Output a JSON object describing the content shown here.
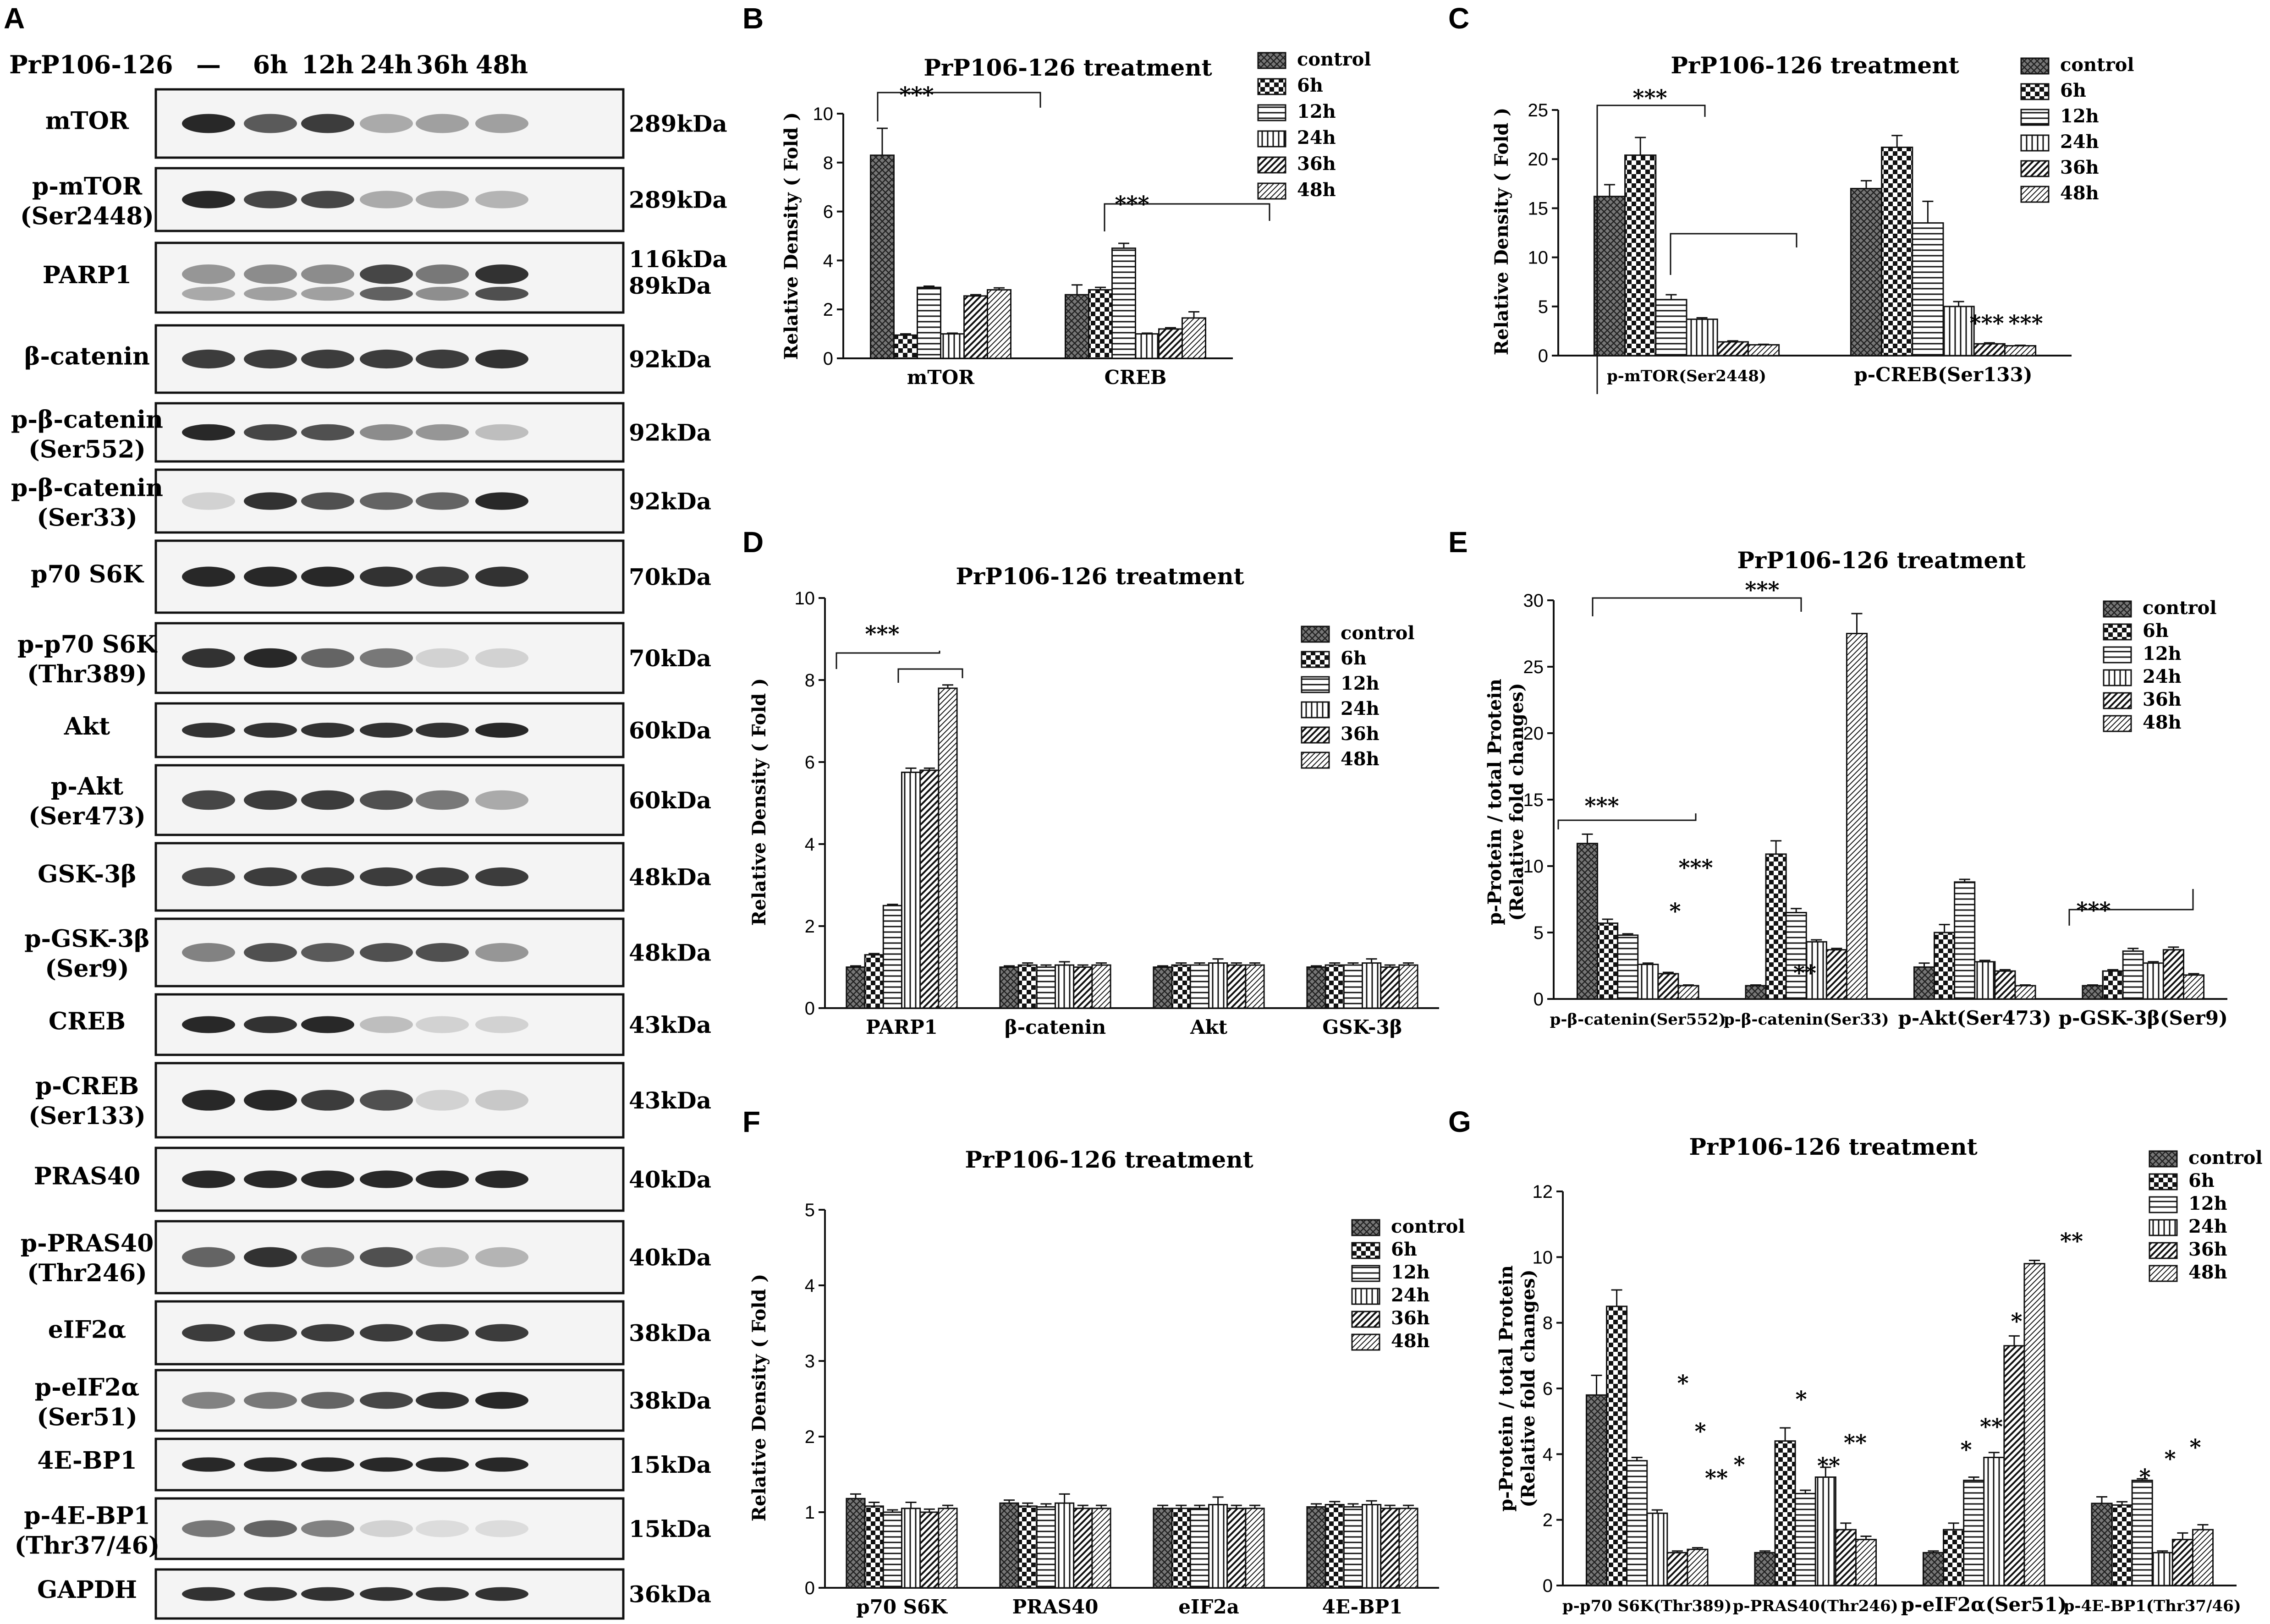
{
  "figure_title": "PrP106-126 treatment",
  "panels": {
    "a": {
      "letter": "A",
      "treatment_label": "PrP106-126",
      "lanes": [
        "—",
        "6h",
        "12h",
        "24h",
        "36h",
        "48h"
      ],
      "blots": [
        {
          "name": "mTOR",
          "site": "",
          "kda": [
            "289kDa"
          ]
        },
        {
          "name": "p-mTOR",
          "site": "(Ser2448)",
          "kda": [
            "289kDa"
          ]
        },
        {
          "name": "PARP1",
          "site": "",
          "kda": [
            "116kDa",
            "89kDa"
          ]
        },
        {
          "name": "β-catenin",
          "site": "",
          "kda": [
            "92kDa"
          ]
        },
        {
          "name": "p-β-catenin",
          "site": "(Ser552)",
          "kda": [
            "92kDa"
          ]
        },
        {
          "name": "p-β-catenin",
          "site": "(Ser33)",
          "kda": [
            "92kDa"
          ]
        },
        {
          "name": "p70 S6K",
          "site": "",
          "kda": [
            "70kDa"
          ]
        },
        {
          "name": "p-p70 S6K",
          "site": "(Thr389)",
          "kda": [
            "70kDa"
          ]
        },
        {
          "name": "Akt",
          "site": "",
          "kda": [
            "60kDa"
          ]
        },
        {
          "name": "p-Akt",
          "site": "(Ser473)",
          "kda": [
            "60kDa"
          ]
        },
        {
          "name": "GSK-3β",
          "site": "",
          "kda": [
            "48kDa"
          ]
        },
        {
          "name": "p-GSK-3β",
          "site": "(Ser9)",
          "kda": [
            "48kDa"
          ]
        },
        {
          "name": "CREB",
          "site": "",
          "kda": [
            "43kDa"
          ]
        },
        {
          "name": "p-CREB",
          "site": "(Ser133)",
          "kda": [
            "43kDa"
          ]
        },
        {
          "name": "PRAS40",
          "site": "",
          "kda": [
            "40kDa"
          ]
        },
        {
          "name": "p-PRAS40",
          "site": "(Thr246)",
          "kda": [
            "40kDa"
          ]
        },
        {
          "name": "eIF2α",
          "site": "",
          "kda": [
            "38kDa"
          ]
        },
        {
          "name": "p-eIF2α",
          "site": "(Ser51)",
          "kda": [
            "38kDa"
          ]
        },
        {
          "name": "4E-BP1",
          "site": "",
          "kda": [
            "15kDa"
          ]
        },
        {
          "name": "p-4E-BP1",
          "site": "(Thr37/46)",
          "kda": [
            "15kDa"
          ]
        },
        {
          "name": "GAPDH",
          "site": "",
          "kda": [
            "36kDa"
          ]
        }
      ]
    }
  },
  "chart_data": [
    {
      "panel": "B",
      "type": "bar",
      "title": "PrP106-126 treatment",
      "ylabel": "Relative Density ( Fold )",
      "xlabel": "",
      "ylim": [
        0,
        10
      ],
      "yticks": [
        0,
        2,
        4,
        6,
        8,
        10
      ],
      "categories": [
        "mTOR",
        "CREB"
      ],
      "series": [
        {
          "name": "control",
          "values": [
            8.3,
            2.6
          ],
          "err": [
            1.1,
            0.4
          ]
        },
        {
          "name": "6h",
          "values": [
            0.95,
            2.8
          ],
          "err": [
            0.05,
            0.1
          ]
        },
        {
          "name": "12h",
          "values": [
            2.9,
            4.5
          ],
          "err": [
            0.05,
            0.2
          ]
        },
        {
          "name": "24h",
          "values": [
            1.0,
            1.0
          ],
          "err": [
            0.03,
            0.03
          ]
        },
        {
          "name": "36h",
          "values": [
            2.55,
            1.2
          ],
          "err": [
            0.05,
            0.05
          ]
        },
        {
          "name": "48h",
          "values": [
            2.8,
            1.65
          ],
          "err": [
            0.08,
            0.25
          ]
        }
      ],
      "annotations": [
        "***",
        "***"
      ],
      "grid": false,
      "legend": "top-right"
    },
    {
      "panel": "C",
      "type": "bar",
      "title": "PrP106-126 treatment",
      "ylabel": "Relative Density ( Fold )",
      "xlabel": "",
      "ylim": [
        0,
        25
      ],
      "yticks": [
        0,
        5,
        10,
        15,
        20,
        25
      ],
      "categories": [
        "p-mTOR(Ser2448)",
        "p-CREB(Ser133)"
      ],
      "series": [
        {
          "name": "control",
          "values": [
            16.2,
            17.0
          ],
          "err": [
            1.2,
            0.8
          ]
        },
        {
          "name": "6h",
          "values": [
            20.4,
            21.2
          ],
          "err": [
            1.8,
            1.2
          ]
        },
        {
          "name": "12h",
          "values": [
            5.7,
            13.5
          ],
          "err": [
            0.5,
            2.2
          ]
        },
        {
          "name": "24h",
          "values": [
            3.7,
            5.0
          ],
          "err": [
            0.15,
            0.5
          ]
        },
        {
          "name": "36h",
          "values": [
            1.4,
            1.2
          ],
          "err": [
            0.1,
            0.1
          ]
        },
        {
          "name": "48h",
          "values": [
            1.1,
            1.0
          ],
          "err": [
            0.05,
            0.05
          ]
        }
      ],
      "annotations": [
        "***",
        "***",
        "***"
      ],
      "grid": false,
      "legend": "top-right"
    },
    {
      "panel": "D",
      "type": "bar",
      "title": "PrP106-126 treatment",
      "ylabel": "Relative Density ( Fold )",
      "xlabel": "",
      "ylim": [
        0,
        10
      ],
      "yticks": [
        0,
        2,
        4,
        6,
        8,
        10
      ],
      "categories": [
        "PARP1",
        "β-catenin",
        "Akt",
        "GSK-3β"
      ],
      "series": [
        {
          "name": "control",
          "values": [
            1.0,
            1.0,
            1.0,
            1.0
          ],
          "err": [
            0.03,
            0.03,
            0.03,
            0.03
          ]
        },
        {
          "name": "6h",
          "values": [
            1.3,
            1.05,
            1.05,
            1.05
          ],
          "err": [
            0.03,
            0.05,
            0.05,
            0.05
          ]
        },
        {
          "name": "12h",
          "values": [
            2.5,
            1.0,
            1.05,
            1.05
          ],
          "err": [
            0.03,
            0.05,
            0.05,
            0.05
          ]
        },
        {
          "name": "24h",
          "values": [
            5.75,
            1.05,
            1.1,
            1.1
          ],
          "err": [
            0.1,
            0.08,
            0.1,
            0.1
          ]
        },
        {
          "name": "36h",
          "values": [
            5.8,
            1.0,
            1.05,
            1.0
          ],
          "err": [
            0.05,
            0.05,
            0.05,
            0.05
          ]
        },
        {
          "name": "48h",
          "values": [
            7.8,
            1.05,
            1.05,
            1.05
          ],
          "err": [
            0.08,
            0.05,
            0.05,
            0.05
          ]
        }
      ],
      "annotations": [
        "***"
      ],
      "grid": false,
      "legend": "top-right"
    },
    {
      "panel": "E",
      "type": "bar",
      "title": "PrP106-126 treatment",
      "ylabel": "p-Protein / total Protein (Relative fold changes)",
      "xlabel": "",
      "ylim": [
        0,
        30
      ],
      "yticks": [
        0,
        5,
        10,
        15,
        20,
        25,
        30
      ],
      "categories": [
        "p-β-catenin(Ser552)",
        "p-β-catenin(Ser33)",
        "p-Akt(Ser473)",
        "p-GSK-3β(Ser9)"
      ],
      "series": [
        {
          "name": "control",
          "values": [
            11.7,
            1.0,
            2.4,
            1.0
          ],
          "err": [
            0.7,
            0.05,
            0.3,
            0.05
          ]
        },
        {
          "name": "6h",
          "values": [
            5.7,
            10.9,
            5.0,
            2.1
          ],
          "err": [
            0.3,
            1.0,
            0.6,
            0.1
          ]
        },
        {
          "name": "12h",
          "values": [
            4.8,
            6.5,
            8.8,
            3.6
          ],
          "err": [
            0.1,
            0.3,
            0.2,
            0.2
          ]
        },
        {
          "name": "24h",
          "values": [
            2.6,
            4.3,
            2.8,
            2.7
          ],
          "err": [
            0.1,
            0.15,
            0.1,
            0.1
          ]
        },
        {
          "name": "36h",
          "values": [
            1.9,
            3.7,
            2.1,
            3.7
          ],
          "err": [
            0.1,
            0.1,
            0.1,
            0.2
          ]
        },
        {
          "name": "48h",
          "values": [
            1.0,
            27.5,
            1.0,
            1.8
          ],
          "err": [
            0.05,
            1.5,
            0.05,
            0.1
          ]
        }
      ],
      "annotations": [
        "***",
        "***",
        "*",
        "***",
        "**",
        "***"
      ],
      "grid": false,
      "legend": "top-right"
    },
    {
      "panel": "F",
      "type": "bar",
      "title": "PrP106-126 treatment",
      "ylabel": "Relative Density ( Fold )",
      "xlabel": "",
      "ylim": [
        0,
        5
      ],
      "yticks": [
        0,
        1,
        2,
        3,
        4,
        5
      ],
      "categories": [
        "p70 S6K",
        "PRAS40",
        "eIF2a",
        "4E-BP1"
      ],
      "series": [
        {
          "name": "control",
          "values": [
            1.18,
            1.12,
            1.05,
            1.07
          ],
          "err": [
            0.06,
            0.04,
            0.04,
            0.04
          ]
        },
        {
          "name": "6h",
          "values": [
            1.08,
            1.08,
            1.05,
            1.1
          ],
          "err": [
            0.05,
            0.04,
            0.04,
            0.04
          ]
        },
        {
          "name": "12h",
          "values": [
            1.0,
            1.07,
            1.05,
            1.07
          ],
          "err": [
            0.03,
            0.04,
            0.04,
            0.04
          ]
        },
        {
          "name": "24h",
          "values": [
            1.05,
            1.12,
            1.1,
            1.1
          ],
          "err": [
            0.08,
            0.12,
            0.1,
            0.05
          ]
        },
        {
          "name": "36h",
          "values": [
            1.0,
            1.05,
            1.05,
            1.05
          ],
          "err": [
            0.04,
            0.04,
            0.04,
            0.04
          ]
        },
        {
          "name": "48h",
          "values": [
            1.05,
            1.05,
            1.05,
            1.05
          ],
          "err": [
            0.04,
            0.04,
            0.04,
            0.04
          ]
        }
      ],
      "annotations": [],
      "grid": false,
      "legend": "top-right"
    },
    {
      "panel": "G",
      "type": "bar",
      "title": "PrP106-126 treatment",
      "ylabel": "p-Protein / total Protein (Relative fold changes)",
      "xlabel": "",
      "ylim": [
        0,
        12
      ],
      "yticks": [
        0,
        2,
        4,
        6,
        8,
        10,
        12
      ],
      "categories": [
        "p-p70 S6K(Thr389)",
        "p-PRAS40(Thr246)",
        "p-eIF2α(Ser51)",
        "p-4E-BP1(Thr37/46)"
      ],
      "series": [
        {
          "name": "control",
          "values": [
            5.8,
            1.0,
            1.0,
            2.5
          ],
          "err": [
            0.6,
            0.05,
            0.05,
            0.2
          ]
        },
        {
          "name": "6h",
          "values": [
            8.5,
            4.4,
            1.7,
            2.45
          ],
          "err": [
            0.5,
            0.4,
            0.2,
            0.1
          ]
        },
        {
          "name": "12h",
          "values": [
            3.8,
            2.8,
            3.2,
            3.2
          ],
          "err": [
            0.1,
            0.1,
            0.1,
            0.05
          ]
        },
        {
          "name": "24h",
          "values": [
            2.2,
            3.3,
            3.9,
            1.0
          ],
          "err": [
            0.1,
            0.3,
            0.15,
            0.05
          ]
        },
        {
          "name": "36h",
          "values": [
            1.0,
            1.7,
            7.3,
            1.4
          ],
          "err": [
            0.05,
            0.2,
            0.3,
            0.2
          ]
        },
        {
          "name": "48h",
          "values": [
            1.1,
            1.4,
            9.8,
            1.7
          ],
          "err": [
            0.05,
            0.1,
            0.1,
            0.15
          ]
        }
      ],
      "annotations": [
        "*",
        "*",
        "**",
        "*",
        "*",
        "**",
        "**",
        "*",
        "**",
        "*",
        "**",
        "*",
        "*",
        "*"
      ],
      "grid": false,
      "legend": "top-right"
    }
  ]
}
